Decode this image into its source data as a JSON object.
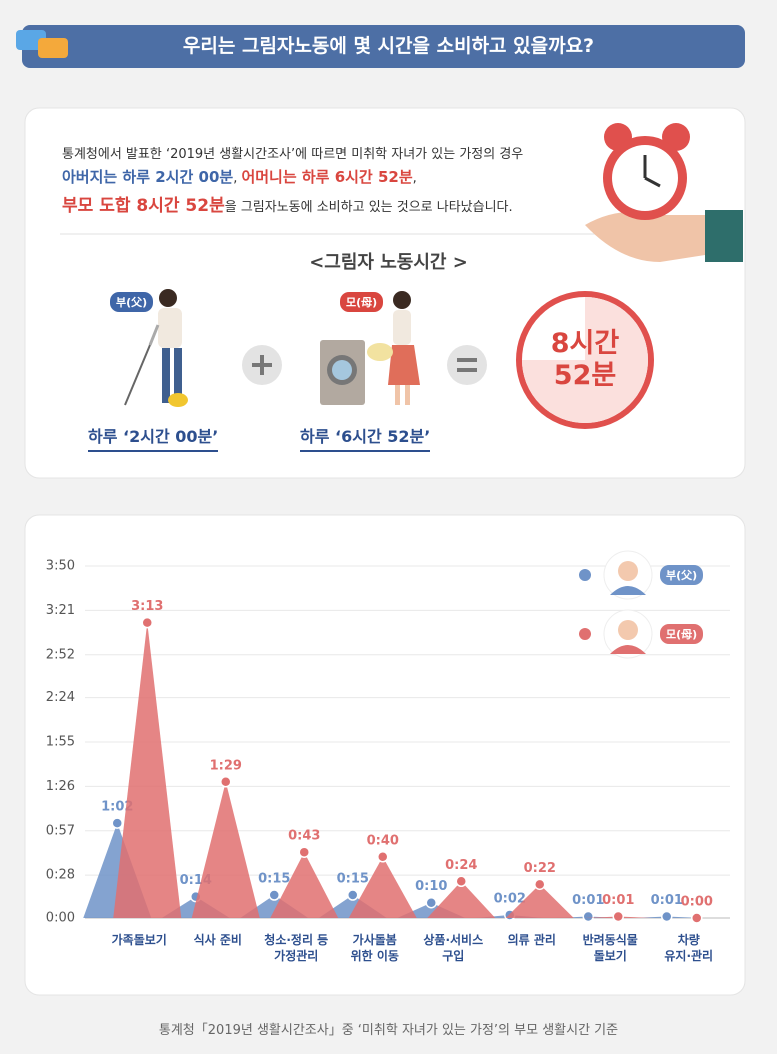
{
  "header": {
    "title": "우리는 그림자노동에 몇 시간을 소비하고 있을까요?"
  },
  "summary": {
    "lines": [
      [
        "통계청에서 발표한 ‘2019년 생활시간조사’에 따르면 미취학 자녀가 있는 가정의 경우"
      ],
      [
        "아버지는 하루 2시간 00분",
        ", ",
        "어머니는 하루 6시간 52분",
        ","
      ],
      [
        "부모 도합 8시간 52분",
        "을 그림자노동에 소비하고 있는 것으로 나타났습니다."
      ]
    ]
  },
  "shadow_labor": {
    "title": "<그림자 노동시간 >",
    "father": {
      "badge": "부(父)",
      "caption": "하루 ‘2시간 00분’"
    },
    "mother": {
      "badge": "모(母)",
      "caption": "하루 ‘6시간 52분’"
    },
    "total": "8시간\n52분"
  },
  "chart_data": {
    "type": "peak",
    "categories": [
      "가족돌보기",
      "식사 준비",
      "청소·정리 등\n가정관리",
      "가사돌봄\n위한 이동",
      "상품·서비스\n구입",
      "의류 관리",
      "반려동식물\n돌보기",
      "차량\n유지·관리"
    ],
    "series": [
      {
        "name": "부(父)",
        "color": "#6f93c8",
        "values": [
          62,
          14,
          15,
          15,
          10,
          2,
          1,
          1
        ],
        "value_labels": [
          "1:02",
          "0:14",
          "0:15",
          "0:15",
          "0:10",
          "0:02",
          "0:01",
          "0:01"
        ]
      },
      {
        "name": "모(母)",
        "color": "#e07070",
        "values": [
          193,
          89,
          43,
          40,
          24,
          22,
          1,
          0
        ],
        "value_labels": [
          "3:13",
          "1:29",
          "0:43",
          "0:40",
          "0:24",
          "0:22",
          "0:01",
          "0:00"
        ]
      }
    ],
    "ylim": [
      0,
      230
    ],
    "yticks": [
      {
        "value": 0,
        "label": "0:00"
      },
      {
        "value": 28,
        "label": "0:28"
      },
      {
        "value": 57,
        "label": "0:57"
      },
      {
        "value": 86,
        "label": "1:26"
      },
      {
        "value": 115,
        "label": "1:55"
      },
      {
        "value": 144,
        "label": "2:24"
      },
      {
        "value": 172,
        "label": "2:52"
      },
      {
        "value": 201,
        "label": "3:21"
      },
      {
        "value": 230,
        "label": "3:50"
      }
    ],
    "grid": true
  },
  "source": "통계청「2019년 생활시간조사」중 ‘미취학 자녀가 있는 가정’의 부모 생활시간 기준"
}
